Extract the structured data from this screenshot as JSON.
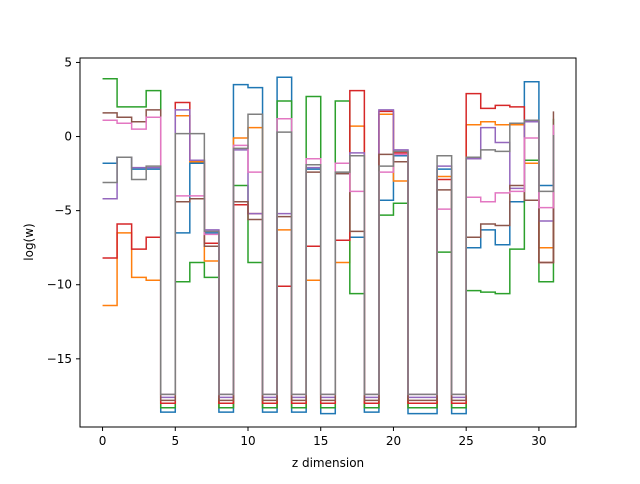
{
  "chart_data": {
    "type": "line",
    "drawstyle": "steps-post",
    "title": "",
    "xlabel": "z dimension",
    "ylabel": "log(w)",
    "xlim": [
      -1.55,
      32.55
    ],
    "ylim": [
      -19.6,
      5.3
    ],
    "xticks": [
      0,
      5,
      10,
      15,
      20,
      25,
      30
    ],
    "yticks": [
      5,
      0,
      -5,
      -10,
      -15
    ],
    "ytick_labels": [
      "5",
      "0",
      "−5",
      "−10",
      "−15"
    ],
    "grid": false,
    "legend": "none",
    "x": [
      0,
      1,
      2,
      3,
      4,
      5,
      6,
      7,
      8,
      9,
      10,
      11,
      12,
      13,
      14,
      15,
      16,
      17,
      18,
      19,
      20,
      21,
      22,
      23,
      24,
      25,
      26,
      27,
      28,
      29,
      30,
      31
    ],
    "series": [
      {
        "color": "#1f77b4",
        "values": [
          -1.8,
          -1.4,
          -2.2,
          -2.2,
          -18.6,
          -6.5,
          -1.8,
          -6.5,
          -18.6,
          3.5,
          3.3,
          -18.6,
          4.0,
          -18.6,
          -2.2,
          -18.7,
          -2.5,
          -6.8,
          -18.6,
          -4.3,
          -1.3,
          -18.7,
          -18.7,
          -2.2,
          -18.7,
          -7.5,
          -6.3,
          -7.3,
          -4.4,
          3.7,
          -3.3,
          -3.2
        ]
      },
      {
        "color": "#ff7f0e",
        "values": [
          -11.4,
          -6.5,
          -9.5,
          -9.7,
          -18.3,
          1.4,
          -1.7,
          -8.4,
          -18.3,
          -0.1,
          0.6,
          -18.3,
          -6.3,
          -18.3,
          -9.7,
          -18.3,
          -8.5,
          0.7,
          -18.3,
          1.5,
          -3.0,
          -18.3,
          -18.3,
          -2.7,
          -18.3,
          0.8,
          1.0,
          0.8,
          0.8,
          -1.8,
          -7.5,
          -2.1
        ]
      },
      {
        "color": "#2ca02c",
        "values": [
          3.9,
          2.0,
          2.0,
          3.1,
          -18.3,
          -9.8,
          -8.5,
          -9.5,
          -18.3,
          -3.3,
          -8.5,
          -18.3,
          2.4,
          -18.3,
          2.7,
          -18.3,
          2.4,
          -10.6,
          -18.3,
          -5.3,
          -4.5,
          -18.3,
          -18.3,
          -7.8,
          -18.3,
          -10.4,
          -10.5,
          -10.6,
          -7.6,
          -1.6,
          -9.8,
          1.2
        ]
      },
      {
        "color": "#d62728",
        "values": [
          -8.2,
          -5.9,
          -7.6,
          -6.8,
          -18.0,
          2.3,
          -1.6,
          -7.2,
          -18.0,
          -4.6,
          -5.2,
          -18.0,
          -10.1,
          -18.0,
          -7.4,
          -18.0,
          -7.0,
          3.1,
          -18.0,
          1.7,
          -1.1,
          -18.0,
          -18.0,
          -2.9,
          -18.0,
          2.9,
          1.9,
          2.1,
          2.0,
          -4.3,
          -8.5,
          -1.6
        ]
      },
      {
        "color": "#9467bd",
        "values": [
          -4.2,
          -1.4,
          -2.1,
          -2.1,
          -17.6,
          1.8,
          -1.6,
          -6.3,
          -17.6,
          -0.9,
          -5.2,
          -17.6,
          -5.2,
          -17.6,
          -2.1,
          -17.6,
          -2.5,
          -1.1,
          -17.6,
          1.8,
          -0.9,
          -17.6,
          -17.6,
          -2.0,
          -17.6,
          -1.5,
          0.6,
          -0.4,
          -3.5,
          1.0,
          -5.7,
          0.3
        ]
      },
      {
        "color": "#8c564b",
        "values": [
          1.6,
          1.3,
          1.0,
          1.8,
          -17.8,
          -4.4,
          -4.2,
          -7.4,
          -17.8,
          -4.4,
          -5.6,
          -17.8,
          -5.4,
          -17.8,
          -2.4,
          -17.8,
          -2.5,
          -6.4,
          -17.8,
          -1.2,
          -1.7,
          -17.8,
          -17.8,
          -3.6,
          -17.8,
          -6.8,
          -5.9,
          -6.0,
          -3.3,
          -4.3,
          -8.5,
          1.7
        ]
      },
      {
        "color": "#e377c2",
        "values": [
          1.1,
          0.9,
          0.5,
          1.3,
          -17.4,
          -4.0,
          -4.0,
          -6.6,
          -17.4,
          -0.6,
          -2.4,
          -17.4,
          1.2,
          -17.4,
          -1.5,
          -17.4,
          -1.8,
          -3.7,
          -17.4,
          -2.4,
          -1.2,
          -17.4,
          -17.4,
          -4.9,
          -17.4,
          -4.1,
          -4.4,
          -3.8,
          -3.7,
          -0.1,
          -4.8,
          0.8
        ]
      },
      {
        "color": "#7f7f7f",
        "values": [
          -3.1,
          -1.4,
          -2.9,
          -2.0,
          -17.4,
          0.2,
          0.2,
          -6.4,
          -17.4,
          -0.8,
          1.5,
          -17.4,
          0.3,
          -17.4,
          -1.9,
          -17.4,
          -2.4,
          -1.3,
          -17.4,
          -2.0,
          -1.0,
          -17.4,
          -17.4,
          -1.3,
          -17.4,
          -1.4,
          -0.9,
          -1.0,
          0.9,
          1.1,
          -3.7,
          0.1
        ]
      }
    ]
  }
}
